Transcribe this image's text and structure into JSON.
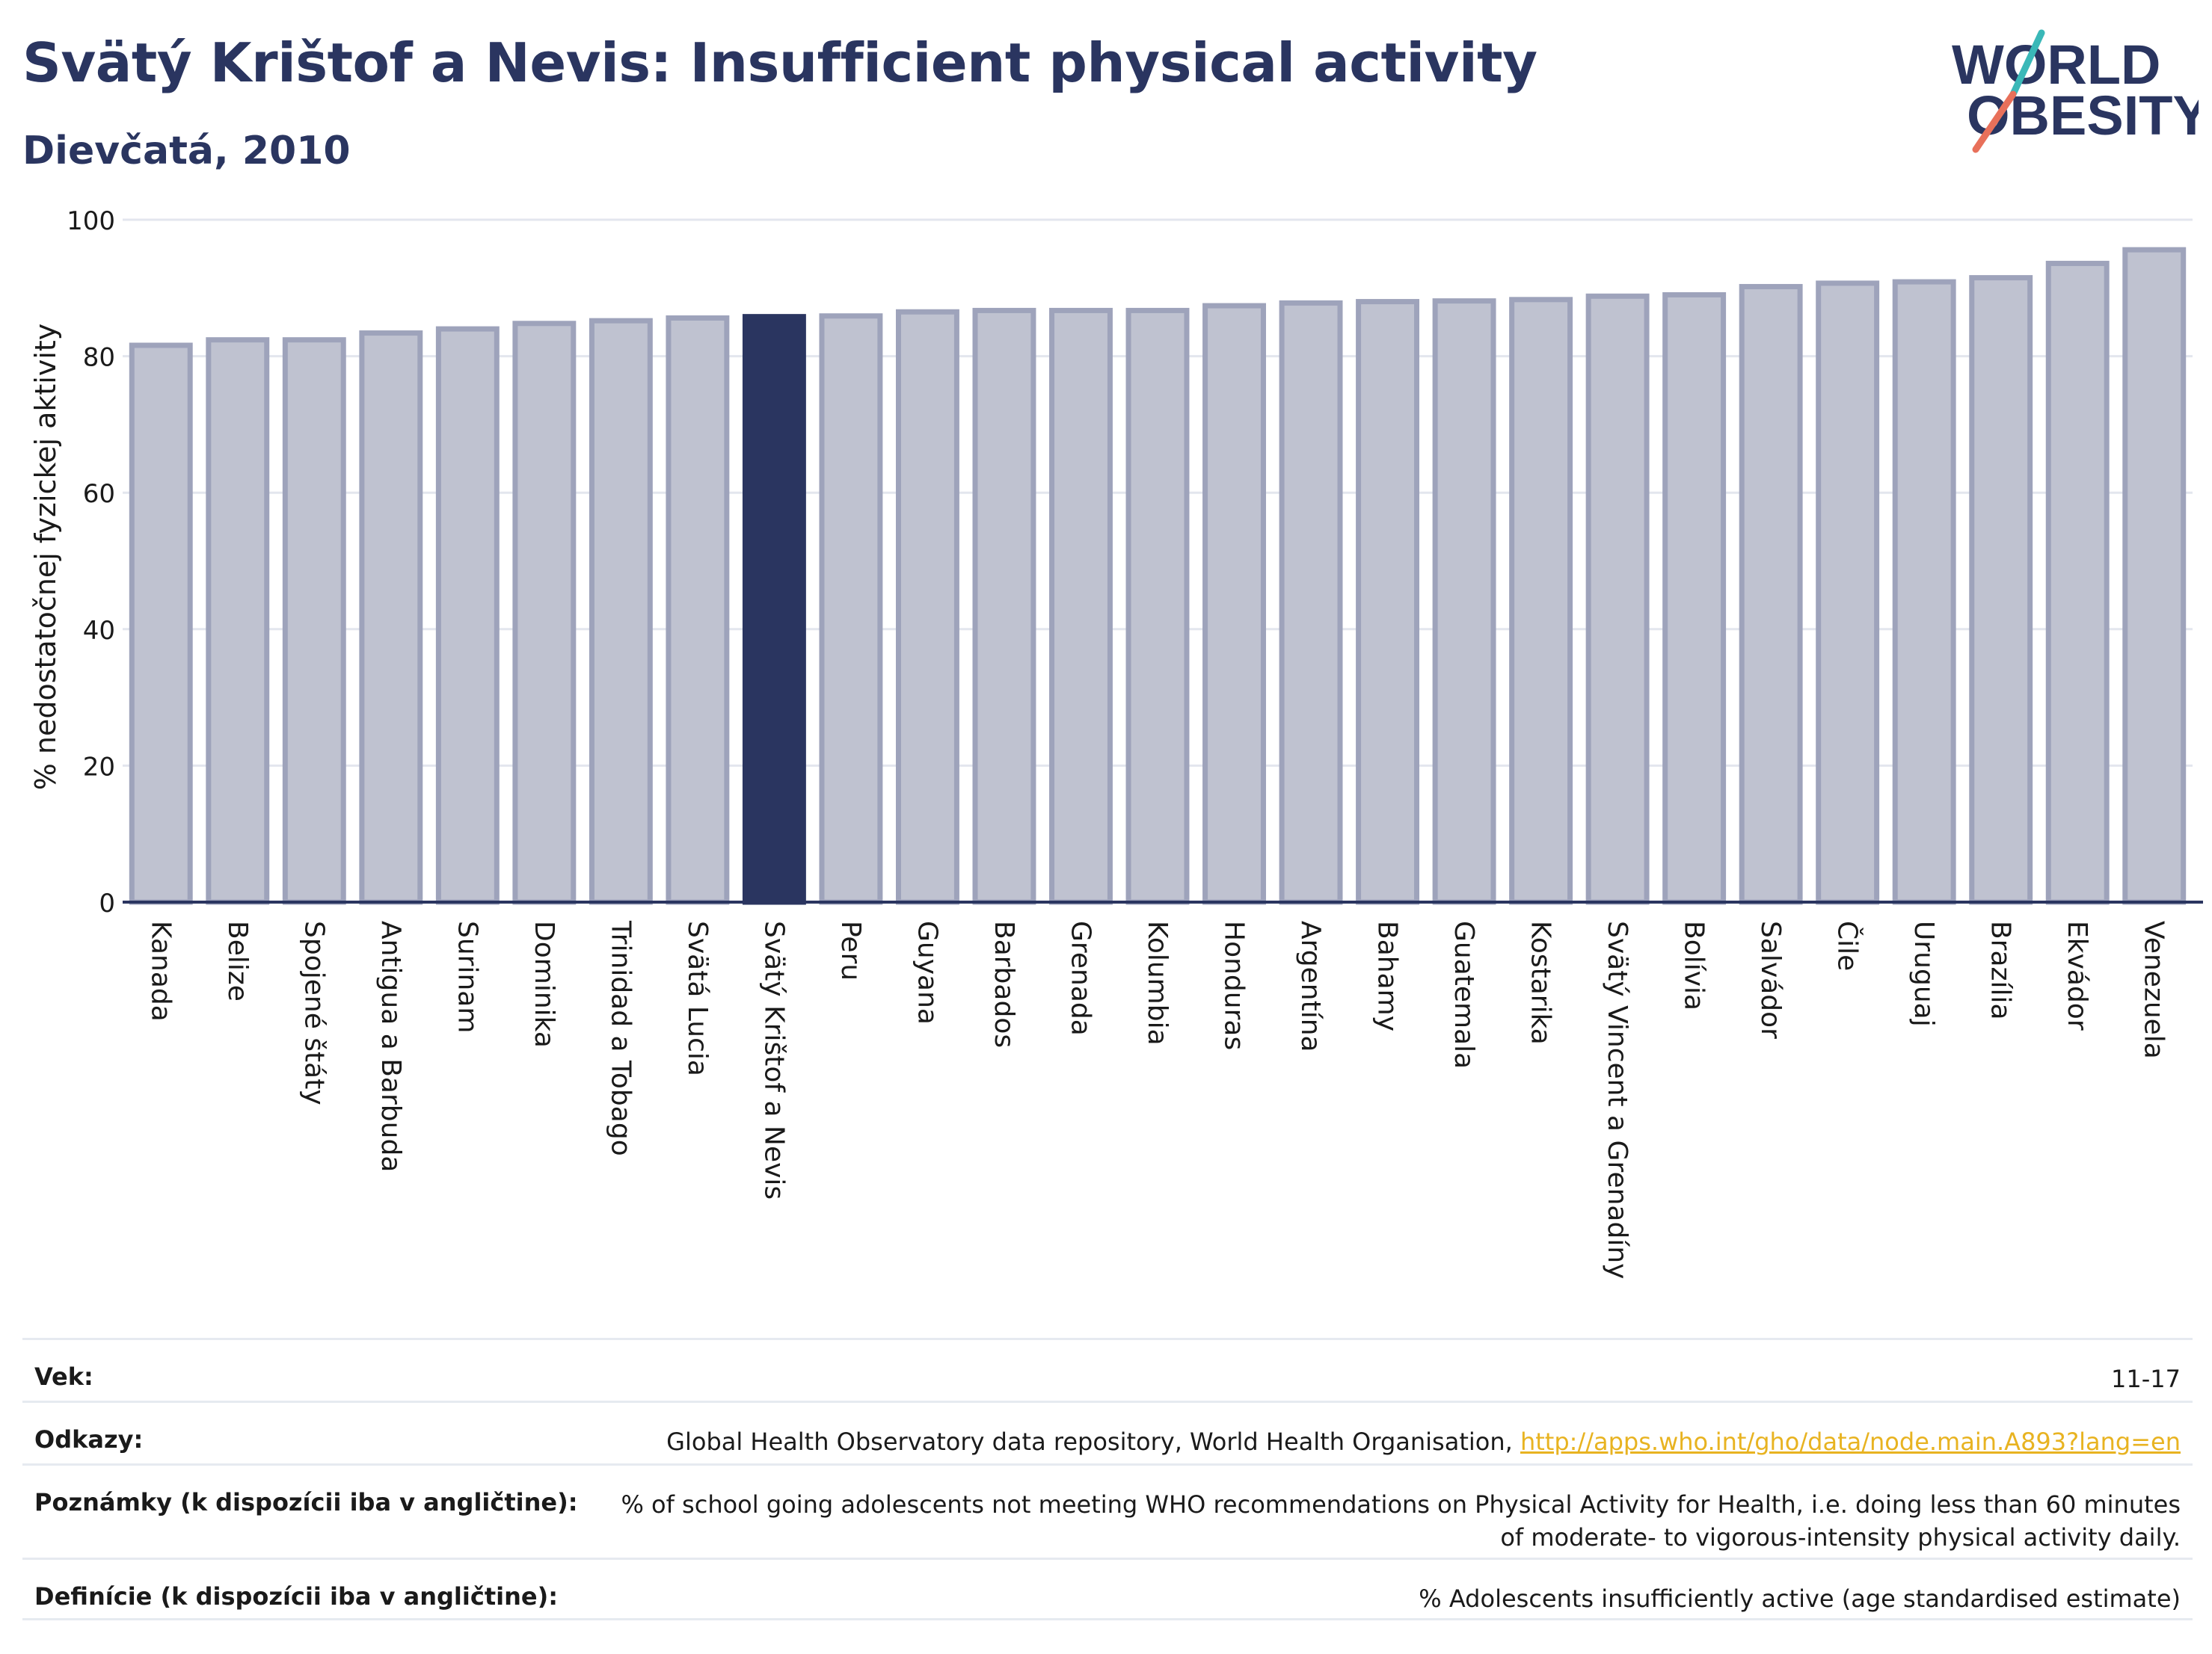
{
  "header": {
    "title": "Svätý Krištof a Nevis: Insufficient physical activity",
    "subtitle": "Dievčatá, 2010",
    "logo_line1": "WORLD",
    "logo_line2": "OBESITY"
  },
  "colors": {
    "highlight": "#2a3560",
    "bar_fill": "#bfc2d0",
    "bar_stroke": "#9ea3bb",
    "axis": "#2a3560",
    "grid": "#e3e6ee",
    "logo_teal": "#3ab8b8",
    "logo_coral": "#e8705a",
    "link": "#e8b321"
  },
  "chart_data": {
    "type": "bar",
    "ylabel": "% nedostatočnej fyzickej aktivity",
    "ylim": [
      0,
      100
    ],
    "yticks": [
      0,
      20,
      40,
      60,
      80,
      100
    ],
    "grid": true,
    "highlight": "Svätý Krištof a Nevis",
    "categories": [
      "Kanada",
      "Belize",
      "Spojené štáty",
      "Antigua a Barbuda",
      "Surinam",
      "Dominika",
      "Trinidad a Tobago",
      "Svätá Lucia",
      "Svätý Krištof a Nevis",
      "Peru",
      "Guyana",
      "Barbados",
      "Grenada",
      "Kolumbia",
      "Honduras",
      "Argentína",
      "Bahamy",
      "Guatemala",
      "Kostarika",
      "Svätý Vincent a Grenadíny",
      "Bolívia",
      "Salvádor",
      "Čile",
      "Uruguaj",
      "Brazília",
      "Ekvádor",
      "Venezuela"
    ],
    "values": [
      81.6,
      82.4,
      82.4,
      83.4,
      84.0,
      84.8,
      85.2,
      85.6,
      85.8,
      85.9,
      86.5,
      86.7,
      86.7,
      86.7,
      87.4,
      87.8,
      88.0,
      88.1,
      88.3,
      88.8,
      89.0,
      90.2,
      90.7,
      90.9,
      91.5,
      93.6,
      95.6
    ]
  },
  "footer": {
    "rows": [
      {
        "key": "Vek:",
        "value": "11-17"
      },
      {
        "key": "Odkazy:",
        "value": "Global Health Observatory data repository, World Health Organisation, ",
        "link": "http://apps.who.int/gho/data/node.main.A893?lang=en"
      },
      {
        "key": "Poznámky (k dispozícii iba v angličtine):",
        "value": "% of school going adolescents not meeting WHO recommendations on Physical Activity for Health, i.e. doing less than 60 minutes of moderate- to vigorous-intensity physical activity daily."
      },
      {
        "key": "Definície (k dispozícii iba v angličtine):",
        "value": "% Adolescents insufficiently active (age standardised estimate)"
      }
    ]
  }
}
